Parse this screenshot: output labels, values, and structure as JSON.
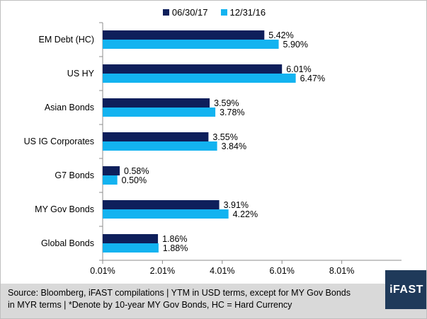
{
  "legend": [
    {
      "label": "06/30/17",
      "color": "#0e1f5b"
    },
    {
      "label": "12/31/16",
      "color": "#13b3f0"
    }
  ],
  "chart_data": {
    "type": "bar",
    "orientation": "horizontal",
    "categories": [
      "EM Debt (HC)",
      "US HY",
      "Asian Bonds",
      "US IG Corporates",
      "G7 Bonds",
      "MY Gov Bonds",
      "Global Bonds"
    ],
    "series": [
      {
        "name": "06/30/17",
        "color": "#0e1f5b",
        "values": [
          5.42,
          6.01,
          3.59,
          3.55,
          0.58,
          3.91,
          1.86
        ],
        "labels": [
          "5.42%",
          "6.01%",
          "3.59%",
          "3.55%",
          "0.58%",
          "3.91%",
          "1.86%"
        ]
      },
      {
        "name": "12/31/16",
        "color": "#13b3f0",
        "values": [
          5.9,
          6.47,
          3.78,
          3.84,
          0.5,
          4.22,
          1.88
        ],
        "labels": [
          "5.90%",
          "6.47%",
          "3.78%",
          "3.84%",
          "0.50%",
          "4.22%",
          "1.88%"
        ]
      }
    ],
    "xticks": [
      "0.01%",
      "2.01%",
      "4.01%",
      "6.01%",
      "8.01%"
    ],
    "xtick_values": [
      0.01,
      2.01,
      4.01,
      6.01,
      8.01
    ],
    "xlim": [
      0.01,
      10.01
    ],
    "grid": false,
    "legend_position": "top"
  },
  "footer": {
    "source_line1": "Source: Bloomberg, iFAST compilations | YTM in USD terms, except for MY Gov Bonds",
    "source_line2": "in MYR terms |  *Denote by 10-year MY Gov Bonds, HC = Hard Currency",
    "brand": "iFAST"
  }
}
